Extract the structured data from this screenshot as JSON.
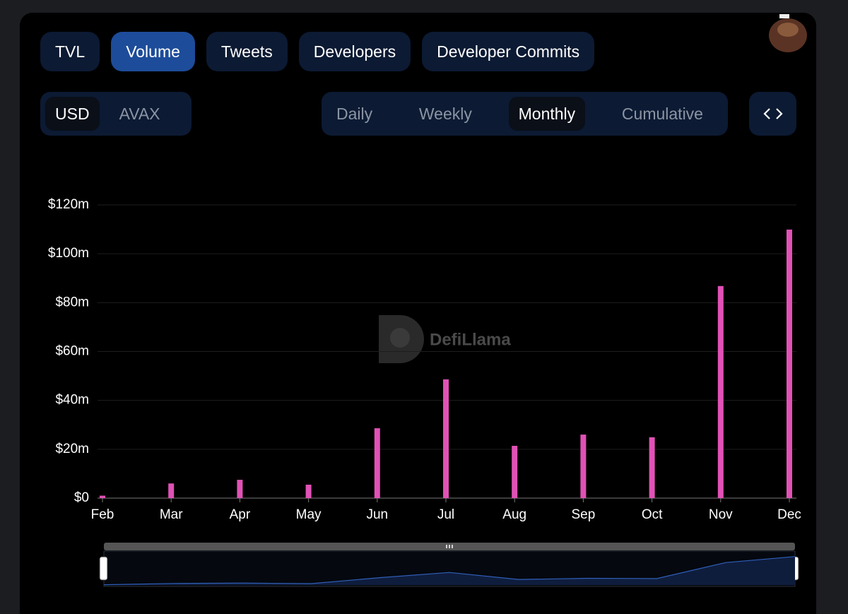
{
  "tabs": [
    "TVL",
    "Volume",
    "Tweets",
    "Developers",
    "Developer Commits"
  ],
  "active_tab": 1,
  "currencies": [
    "USD",
    "AVAX"
  ],
  "active_currency": 0,
  "periods": [
    "Daily",
    "Weekly",
    "Monthly",
    "Cumulative"
  ],
  "active_period": 2,
  "chart_data": {
    "type": "bar",
    "watermark": "DefiLlama",
    "categories": [
      "Feb",
      "Mar",
      "Apr",
      "May",
      "Jun",
      "Jul",
      "Aug",
      "Sep",
      "Oct",
      "Nov",
      "Dec"
    ],
    "values": [
      1,
      6,
      7.5,
      5.5,
      28.6,
      48.6,
      21.4,
      26,
      24.9,
      86.8,
      109.9
    ],
    "color": "#e052b5",
    "ylim": [
      0,
      120
    ],
    "yticks": [
      {
        "value": 0,
        "label": "$0"
      },
      {
        "value": 20,
        "label": "$20m"
      },
      {
        "value": 40,
        "label": "$40m"
      },
      {
        "value": 60,
        "label": "$60m"
      },
      {
        "value": 80,
        "label": "$80m"
      },
      {
        "value": 100,
        "label": "$100m"
      },
      {
        "value": 120,
        "label": "$120m"
      }
    ],
    "grid": true
  }
}
